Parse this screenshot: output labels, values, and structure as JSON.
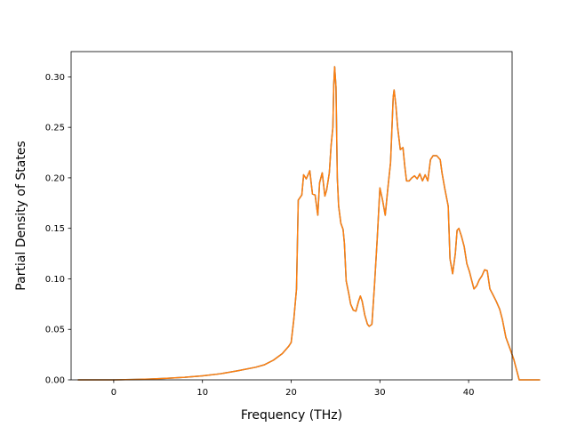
{
  "chart_data": {
    "type": "line",
    "xlabel": "Frequency (THz)",
    "ylabel": "Partial Density of States",
    "xlim": [
      -4.8,
      44.9
    ],
    "ylim": [
      0.0,
      0.325
    ],
    "x_ticks": [
      0,
      10,
      20,
      30,
      40
    ],
    "y_ticks": [
      0.0,
      0.05,
      0.1,
      0.15,
      0.2,
      0.25,
      0.3
    ],
    "x_tick_labels": [
      "0",
      "10",
      "20",
      "30",
      "40"
    ],
    "y_tick_labels": [
      "0.00",
      "0.05",
      "0.10",
      "0.15",
      "0.20",
      "0.25",
      "0.30"
    ],
    "grid": false,
    "series": [
      {
        "color": "#1f77b4",
        "points": [
          [
            -4.0,
            0.0
          ],
          [
            -2.0,
            0.0
          ],
          [
            0.0,
            0.0
          ],
          [
            2.0,
            0.0003
          ],
          [
            4.0,
            0.0008
          ],
          [
            6.0,
            0.0015
          ],
          [
            8.0,
            0.0025
          ],
          [
            10.0,
            0.004
          ],
          [
            12.0,
            0.006
          ],
          [
            14.0,
            0.009
          ],
          [
            16.0,
            0.0125
          ],
          [
            17.0,
            0.015
          ],
          [
            18.0,
            0.0195
          ],
          [
            19.0,
            0.026
          ],
          [
            19.7,
            0.033
          ],
          [
            20.0,
            0.037
          ],
          [
            20.3,
            0.06
          ],
          [
            20.6,
            0.09
          ],
          [
            20.8,
            0.178
          ],
          [
            21.2,
            0.183
          ],
          [
            21.4,
            0.203
          ],
          [
            21.7,
            0.199
          ],
          [
            22.1,
            0.207
          ],
          [
            22.4,
            0.184
          ],
          [
            22.7,
            0.183
          ],
          [
            23.0,
            0.163
          ],
          [
            23.2,
            0.195
          ],
          [
            23.5,
            0.205
          ],
          [
            23.8,
            0.182
          ],
          [
            24.0,
            0.188
          ],
          [
            24.3,
            0.205
          ],
          [
            24.5,
            0.232
          ],
          [
            24.7,
            0.25
          ],
          [
            24.8,
            0.292
          ],
          [
            24.9,
            0.31
          ],
          [
            25.05,
            0.29
          ],
          [
            25.2,
            0.2
          ],
          [
            25.35,
            0.172
          ],
          [
            25.6,
            0.155
          ],
          [
            25.85,
            0.149
          ],
          [
            26.0,
            0.135
          ],
          [
            26.2,
            0.098
          ],
          [
            26.5,
            0.085
          ],
          [
            26.7,
            0.075
          ],
          [
            27.0,
            0.069
          ],
          [
            27.3,
            0.068
          ],
          [
            27.6,
            0.078
          ],
          [
            27.8,
            0.083
          ],
          [
            28.0,
            0.078
          ],
          [
            28.3,
            0.064
          ],
          [
            28.6,
            0.055
          ],
          [
            28.8,
            0.053
          ],
          [
            29.1,
            0.055
          ],
          [
            29.4,
            0.095
          ],
          [
            29.7,
            0.14
          ],
          [
            30.0,
            0.19
          ],
          [
            30.3,
            0.178
          ],
          [
            30.6,
            0.163
          ],
          [
            30.9,
            0.19
          ],
          [
            31.2,
            0.215
          ],
          [
            31.5,
            0.28
          ],
          [
            31.6,
            0.287
          ],
          [
            31.8,
            0.272
          ],
          [
            32.0,
            0.25
          ],
          [
            32.3,
            0.228
          ],
          [
            32.6,
            0.23
          ],
          [
            32.8,
            0.212
          ],
          [
            33.0,
            0.197
          ],
          [
            33.3,
            0.197
          ],
          [
            33.6,
            0.2
          ],
          [
            33.9,
            0.202
          ],
          [
            34.2,
            0.199
          ],
          [
            34.5,
            0.204
          ],
          [
            34.8,
            0.197
          ],
          [
            35.1,
            0.203
          ],
          [
            35.4,
            0.197
          ],
          [
            35.7,
            0.218
          ],
          [
            36.0,
            0.222
          ],
          [
            36.4,
            0.222
          ],
          [
            36.8,
            0.218
          ],
          [
            37.0,
            0.205
          ],
          [
            37.3,
            0.19
          ],
          [
            37.7,
            0.172
          ],
          [
            37.9,
            0.12
          ],
          [
            38.2,
            0.105
          ],
          [
            38.5,
            0.125
          ],
          [
            38.7,
            0.148
          ],
          [
            38.9,
            0.15
          ],
          [
            39.2,
            0.142
          ],
          [
            39.5,
            0.132
          ],
          [
            39.8,
            0.115
          ],
          [
            40.1,
            0.107
          ],
          [
            40.3,
            0.1
          ],
          [
            40.6,
            0.09
          ],
          [
            40.9,
            0.093
          ],
          [
            41.2,
            0.099
          ],
          [
            41.5,
            0.103
          ],
          [
            41.8,
            0.109
          ],
          [
            42.1,
            0.108
          ],
          [
            42.4,
            0.09
          ],
          [
            42.7,
            0.085
          ],
          [
            43.1,
            0.078
          ],
          [
            43.5,
            0.07
          ],
          [
            43.8,
            0.06
          ],
          [
            44.2,
            0.042
          ],
          [
            44.7,
            0.03
          ],
          [
            45.1,
            0.02
          ],
          [
            45.4,
            0.01
          ],
          [
            45.7,
            0.0
          ],
          [
            46.2,
            0.0
          ],
          [
            47.0,
            0.0
          ],
          [
            48.0,
            0.0
          ]
        ]
      },
      {
        "color": "#ff7f0e",
        "points": [
          [
            -4.0,
            0.0
          ],
          [
            -2.0,
            0.0
          ],
          [
            0.0,
            0.0
          ],
          [
            2.0,
            0.0003
          ],
          [
            4.0,
            0.0008
          ],
          [
            6.0,
            0.0015
          ],
          [
            8.0,
            0.0025
          ],
          [
            10.0,
            0.004
          ],
          [
            12.0,
            0.006
          ],
          [
            14.0,
            0.009
          ],
          [
            16.0,
            0.0125
          ],
          [
            17.0,
            0.015
          ],
          [
            18.0,
            0.0195
          ],
          [
            19.0,
            0.026
          ],
          [
            19.7,
            0.033
          ],
          [
            20.0,
            0.037
          ],
          [
            20.3,
            0.06
          ],
          [
            20.6,
            0.09
          ],
          [
            20.8,
            0.178
          ],
          [
            21.2,
            0.183
          ],
          [
            21.4,
            0.203
          ],
          [
            21.7,
            0.199
          ],
          [
            22.1,
            0.207
          ],
          [
            22.4,
            0.184
          ],
          [
            22.7,
            0.183
          ],
          [
            23.0,
            0.163
          ],
          [
            23.2,
            0.195
          ],
          [
            23.5,
            0.205
          ],
          [
            23.8,
            0.182
          ],
          [
            24.0,
            0.188
          ],
          [
            24.3,
            0.205
          ],
          [
            24.5,
            0.232
          ],
          [
            24.7,
            0.25
          ],
          [
            24.8,
            0.292
          ],
          [
            24.9,
            0.31
          ],
          [
            25.05,
            0.29
          ],
          [
            25.2,
            0.2
          ],
          [
            25.35,
            0.172
          ],
          [
            25.6,
            0.155
          ],
          [
            25.85,
            0.149
          ],
          [
            26.0,
            0.135
          ],
          [
            26.2,
            0.098
          ],
          [
            26.5,
            0.085
          ],
          [
            26.7,
            0.075
          ],
          [
            27.0,
            0.069
          ],
          [
            27.3,
            0.068
          ],
          [
            27.6,
            0.078
          ],
          [
            27.8,
            0.083
          ],
          [
            28.0,
            0.078
          ],
          [
            28.3,
            0.064
          ],
          [
            28.6,
            0.055
          ],
          [
            28.8,
            0.053
          ],
          [
            29.1,
            0.055
          ],
          [
            29.4,
            0.095
          ],
          [
            29.7,
            0.14
          ],
          [
            30.0,
            0.19
          ],
          [
            30.3,
            0.178
          ],
          [
            30.6,
            0.163
          ],
          [
            30.9,
            0.19
          ],
          [
            31.2,
            0.215
          ],
          [
            31.5,
            0.28
          ],
          [
            31.6,
            0.287
          ],
          [
            31.8,
            0.272
          ],
          [
            32.0,
            0.25
          ],
          [
            32.3,
            0.228
          ],
          [
            32.6,
            0.23
          ],
          [
            32.8,
            0.212
          ],
          [
            33.0,
            0.197
          ],
          [
            33.3,
            0.197
          ],
          [
            33.6,
            0.2
          ],
          [
            33.9,
            0.202
          ],
          [
            34.2,
            0.199
          ],
          [
            34.5,
            0.204
          ],
          [
            34.8,
            0.197
          ],
          [
            35.1,
            0.203
          ],
          [
            35.4,
            0.197
          ],
          [
            35.7,
            0.218
          ],
          [
            36.0,
            0.222
          ],
          [
            36.4,
            0.222
          ],
          [
            36.8,
            0.218
          ],
          [
            37.0,
            0.205
          ],
          [
            37.3,
            0.19
          ],
          [
            37.7,
            0.172
          ],
          [
            37.9,
            0.12
          ],
          [
            38.2,
            0.105
          ],
          [
            38.5,
            0.125
          ],
          [
            38.7,
            0.148
          ],
          [
            38.9,
            0.15
          ],
          [
            39.2,
            0.142
          ],
          [
            39.5,
            0.132
          ],
          [
            39.8,
            0.115
          ],
          [
            40.1,
            0.107
          ],
          [
            40.3,
            0.1
          ],
          [
            40.6,
            0.09
          ],
          [
            40.9,
            0.093
          ],
          [
            41.2,
            0.099
          ],
          [
            41.5,
            0.103
          ],
          [
            41.8,
            0.109
          ],
          [
            42.1,
            0.108
          ],
          [
            42.4,
            0.09
          ],
          [
            42.7,
            0.085
          ],
          [
            43.1,
            0.078
          ],
          [
            43.5,
            0.07
          ],
          [
            43.8,
            0.06
          ],
          [
            44.2,
            0.042
          ],
          [
            44.7,
            0.03
          ],
          [
            45.1,
            0.02
          ],
          [
            45.4,
            0.01
          ],
          [
            45.7,
            0.0
          ],
          [
            46.2,
            0.0
          ],
          [
            47.0,
            0.0
          ],
          [
            48.0,
            0.0
          ]
        ]
      }
    ]
  }
}
